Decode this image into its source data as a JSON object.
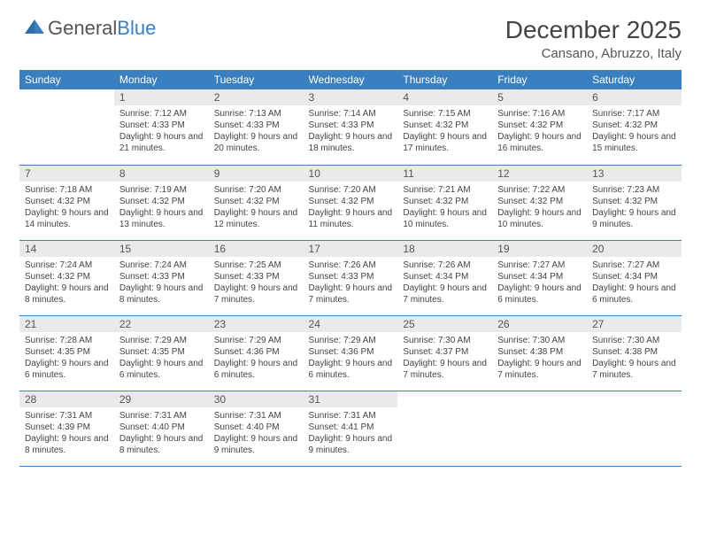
{
  "brand": {
    "part1": "General",
    "part2": "Blue"
  },
  "title": "December 2025",
  "location": "Cansano, Abruzzo, Italy",
  "colors": {
    "header_bg": "#3a7fbf",
    "header_text": "#ffffff",
    "daynum_bg": "#e9eaec",
    "text": "#444444",
    "rule": "#3a7fbf"
  },
  "weekdays": [
    "Sunday",
    "Monday",
    "Tuesday",
    "Wednesday",
    "Thursday",
    "Friday",
    "Saturday"
  ],
  "leading_blanks": 1,
  "days": [
    {
      "n": "1",
      "sunrise": "Sunrise: 7:12 AM",
      "sunset": "Sunset: 4:33 PM",
      "daylight": "Daylight: 9 hours and 21 minutes."
    },
    {
      "n": "2",
      "sunrise": "Sunrise: 7:13 AM",
      "sunset": "Sunset: 4:33 PM",
      "daylight": "Daylight: 9 hours and 20 minutes."
    },
    {
      "n": "3",
      "sunrise": "Sunrise: 7:14 AM",
      "sunset": "Sunset: 4:33 PM",
      "daylight": "Daylight: 9 hours and 18 minutes."
    },
    {
      "n": "4",
      "sunrise": "Sunrise: 7:15 AM",
      "sunset": "Sunset: 4:32 PM",
      "daylight": "Daylight: 9 hours and 17 minutes."
    },
    {
      "n": "5",
      "sunrise": "Sunrise: 7:16 AM",
      "sunset": "Sunset: 4:32 PM",
      "daylight": "Daylight: 9 hours and 16 minutes."
    },
    {
      "n": "6",
      "sunrise": "Sunrise: 7:17 AM",
      "sunset": "Sunset: 4:32 PM",
      "daylight": "Daylight: 9 hours and 15 minutes."
    },
    {
      "n": "7",
      "sunrise": "Sunrise: 7:18 AM",
      "sunset": "Sunset: 4:32 PM",
      "daylight": "Daylight: 9 hours and 14 minutes."
    },
    {
      "n": "8",
      "sunrise": "Sunrise: 7:19 AM",
      "sunset": "Sunset: 4:32 PM",
      "daylight": "Daylight: 9 hours and 13 minutes."
    },
    {
      "n": "9",
      "sunrise": "Sunrise: 7:20 AM",
      "sunset": "Sunset: 4:32 PM",
      "daylight": "Daylight: 9 hours and 12 minutes."
    },
    {
      "n": "10",
      "sunrise": "Sunrise: 7:20 AM",
      "sunset": "Sunset: 4:32 PM",
      "daylight": "Daylight: 9 hours and 11 minutes."
    },
    {
      "n": "11",
      "sunrise": "Sunrise: 7:21 AM",
      "sunset": "Sunset: 4:32 PM",
      "daylight": "Daylight: 9 hours and 10 minutes."
    },
    {
      "n": "12",
      "sunrise": "Sunrise: 7:22 AM",
      "sunset": "Sunset: 4:32 PM",
      "daylight": "Daylight: 9 hours and 10 minutes."
    },
    {
      "n": "13",
      "sunrise": "Sunrise: 7:23 AM",
      "sunset": "Sunset: 4:32 PM",
      "daylight": "Daylight: 9 hours and 9 minutes."
    },
    {
      "n": "14",
      "sunrise": "Sunrise: 7:24 AM",
      "sunset": "Sunset: 4:32 PM",
      "daylight": "Daylight: 9 hours and 8 minutes."
    },
    {
      "n": "15",
      "sunrise": "Sunrise: 7:24 AM",
      "sunset": "Sunset: 4:33 PM",
      "daylight": "Daylight: 9 hours and 8 minutes."
    },
    {
      "n": "16",
      "sunrise": "Sunrise: 7:25 AM",
      "sunset": "Sunset: 4:33 PM",
      "daylight": "Daylight: 9 hours and 7 minutes."
    },
    {
      "n": "17",
      "sunrise": "Sunrise: 7:26 AM",
      "sunset": "Sunset: 4:33 PM",
      "daylight": "Daylight: 9 hours and 7 minutes."
    },
    {
      "n": "18",
      "sunrise": "Sunrise: 7:26 AM",
      "sunset": "Sunset: 4:34 PM",
      "daylight": "Daylight: 9 hours and 7 minutes."
    },
    {
      "n": "19",
      "sunrise": "Sunrise: 7:27 AM",
      "sunset": "Sunset: 4:34 PM",
      "daylight": "Daylight: 9 hours and 6 minutes."
    },
    {
      "n": "20",
      "sunrise": "Sunrise: 7:27 AM",
      "sunset": "Sunset: 4:34 PM",
      "daylight": "Daylight: 9 hours and 6 minutes."
    },
    {
      "n": "21",
      "sunrise": "Sunrise: 7:28 AM",
      "sunset": "Sunset: 4:35 PM",
      "daylight": "Daylight: 9 hours and 6 minutes."
    },
    {
      "n": "22",
      "sunrise": "Sunrise: 7:29 AM",
      "sunset": "Sunset: 4:35 PM",
      "daylight": "Daylight: 9 hours and 6 minutes."
    },
    {
      "n": "23",
      "sunrise": "Sunrise: 7:29 AM",
      "sunset": "Sunset: 4:36 PM",
      "daylight": "Daylight: 9 hours and 6 minutes."
    },
    {
      "n": "24",
      "sunrise": "Sunrise: 7:29 AM",
      "sunset": "Sunset: 4:36 PM",
      "daylight": "Daylight: 9 hours and 6 minutes."
    },
    {
      "n": "25",
      "sunrise": "Sunrise: 7:30 AM",
      "sunset": "Sunset: 4:37 PM",
      "daylight": "Daylight: 9 hours and 7 minutes."
    },
    {
      "n": "26",
      "sunrise": "Sunrise: 7:30 AM",
      "sunset": "Sunset: 4:38 PM",
      "daylight": "Daylight: 9 hours and 7 minutes."
    },
    {
      "n": "27",
      "sunrise": "Sunrise: 7:30 AM",
      "sunset": "Sunset: 4:38 PM",
      "daylight": "Daylight: 9 hours and 7 minutes."
    },
    {
      "n": "28",
      "sunrise": "Sunrise: 7:31 AM",
      "sunset": "Sunset: 4:39 PM",
      "daylight": "Daylight: 9 hours and 8 minutes."
    },
    {
      "n": "29",
      "sunrise": "Sunrise: 7:31 AM",
      "sunset": "Sunset: 4:40 PM",
      "daylight": "Daylight: 9 hours and 8 minutes."
    },
    {
      "n": "30",
      "sunrise": "Sunrise: 7:31 AM",
      "sunset": "Sunset: 4:40 PM",
      "daylight": "Daylight: 9 hours and 9 minutes."
    },
    {
      "n": "31",
      "sunrise": "Sunrise: 7:31 AM",
      "sunset": "Sunset: 4:41 PM",
      "daylight": "Daylight: 9 hours and 9 minutes."
    }
  ]
}
